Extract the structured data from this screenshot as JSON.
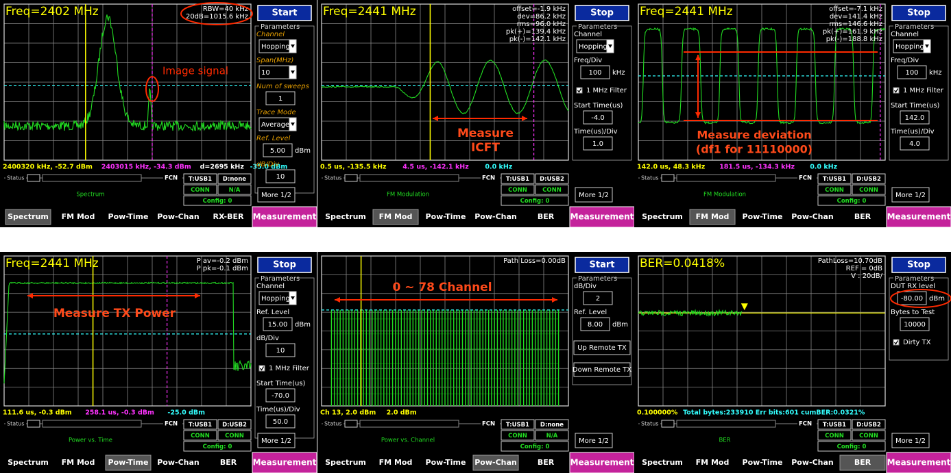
{
  "panels": [
    {
      "header": "Freq=2402 MHz",
      "info": [
        "RBW=40 kHz",
        "20dB=1015.6 kHz"
      ],
      "button": "Start",
      "parameters_title": "Parameters",
      "params": [
        {
          "kind": "select",
          "label": "Channel",
          "value": "Hopping"
        },
        {
          "kind": "select",
          "label": "Span(MHz)",
          "value": "10"
        },
        {
          "kind": "input",
          "label": "Num of sweeps",
          "value": "1"
        },
        {
          "kind": "select",
          "label": "Trace Mode",
          "value": "Average"
        },
        {
          "kind": "input",
          "label": "Ref. Level",
          "value": "5.00",
          "unit": "dBm"
        },
        {
          "kind": "input",
          "label": "dB/Div",
          "value": "10"
        }
      ],
      "markers": [
        "2400320 kHz, -52.7 dBm",
        "2403015 kHz, -34.3 dBm",
        "d=2695 kHz",
        "-35.0 dBm"
      ],
      "status": {
        "label": "Status",
        "fcn": "FCN",
        "mode": "Spectrum",
        "t": "T:USB1",
        "d": "D:none",
        "conn1": "CONN",
        "conn2": "N/A",
        "config": "Config: 0"
      },
      "more": "More 1/2",
      "tabs": [
        "Spectrum",
        "FM Mod",
        "Pow-Time",
        "Pow-Chan",
        "RX-BER"
      ],
      "active_tab": 0,
      "measurement": "Measurement",
      "trace": "spectrum",
      "annotations": [
        "Image signal"
      ]
    },
    {
      "header": "Freq=2441 MHz",
      "info": [
        "offset=-1.9 kHz",
        "dev=86.2 kHz",
        "rms=96.0 kHz",
        "pk(+)=139.4 kHz",
        "pk(-)=142.1 kHz"
      ],
      "button": "Stop",
      "parameters_title": "Parameters",
      "params": [
        {
          "kind": "select",
          "label": "Channel",
          "value": "Hopping"
        },
        {
          "kind": "input",
          "label": "Freq/Div",
          "value": "100",
          "unit": "kHz"
        },
        {
          "kind": "check",
          "text": "1 MHz Filter"
        },
        {
          "kind": "input",
          "label": "Start Time(us)",
          "value": "-4.0"
        },
        {
          "kind": "input",
          "label": "Time(us)/Div",
          "value": "1.0"
        }
      ],
      "markers": [
        "0.5 us, -135.5 kHz",
        "4.5 us, -142.1 kHz",
        "0.0 kHz"
      ],
      "status": {
        "label": "Status",
        "fcn": "FCN",
        "mode": "FM Modulation",
        "t": "T:USB1",
        "d": "D:USB2",
        "conn1": "CONN",
        "conn2": "CONN",
        "config": "Config: 0"
      },
      "more": "More 1/2",
      "tabs": [
        "Spectrum",
        "FM Mod",
        "Pow-Time",
        "Pow-Chan",
        "BER"
      ],
      "active_tab": 1,
      "measurement": "Measurement",
      "trace": "sine",
      "annotations": [
        "Measure",
        "ICFT"
      ]
    },
    {
      "header": "Freq=2441 MHz",
      "info": [
        "offset=-7.1 kHz",
        "dev=141.4 kHz",
        "rms=146.6 kHz",
        "pk(+)=161.9 kHz",
        "pk(-)=188.8 kHz"
      ],
      "button": "Stop",
      "parameters_title": "Parameters",
      "params": [
        {
          "kind": "select",
          "label": "Channel",
          "value": "Hopping"
        },
        {
          "kind": "input",
          "label": "Freq/Div",
          "value": "100",
          "unit": "kHz"
        },
        {
          "kind": "check",
          "text": "1 MHz Filter"
        },
        {
          "kind": "input",
          "label": "Start Time(us)",
          "value": "142.0"
        },
        {
          "kind": "input",
          "label": "Time(us)/Div",
          "value": "4.0"
        }
      ],
      "markers": [
        "142.0 us, 48.3 kHz",
        "181.5 us, -134.3 kHz",
        "0.0 kHz"
      ],
      "status": {
        "label": "Status",
        "fcn": "FCN",
        "mode": "FM Modulation",
        "t": "T:USB1",
        "d": "D:USB2",
        "conn1": "CONN",
        "conn2": "CONN",
        "config": "Config: 0"
      },
      "more": "More 1/2",
      "tabs": [
        "Spectrum",
        "FM Mod",
        "Pow-Time",
        "Pow-Chan",
        "BER"
      ],
      "active_tab": 1,
      "measurement": "Measurement",
      "trace": "square",
      "annotations": [
        "Measure deviation",
        "(df1 for 11110000)"
      ]
    },
    {
      "header": "Freq=2441 MHz",
      "info": [
        "P av=-0.2 dBm",
        "P pk=-0.1 dBm"
      ],
      "button": "Stop",
      "parameters_title": "Parameters",
      "params": [
        {
          "kind": "select",
          "label": "Channel",
          "value": "Hopping"
        },
        {
          "kind": "input",
          "label": "Ref. Level",
          "value": "15.00",
          "unit": "dBm"
        },
        {
          "kind": "input",
          "label": "dB/Div",
          "value": "10"
        },
        {
          "kind": "check",
          "text": "1 MHz Filter"
        },
        {
          "kind": "input",
          "label": "Start Time(us)",
          "value": "-70.0"
        },
        {
          "kind": "input",
          "label": "Time(us)/Div",
          "value": "50.0"
        }
      ],
      "markers": [
        "111.6 us, -0.3 dBm",
        "258.1 us, -0.3 dBm",
        "-25.0 dBm"
      ],
      "status": {
        "label": "Status",
        "fcn": "FCN",
        "mode": "Power vs. Time",
        "t": "T:USB1",
        "d": "D:USB2",
        "conn1": "CONN",
        "conn2": "CONN",
        "config": "Config: 0"
      },
      "more": "More 1/2",
      "tabs": [
        "Spectrum",
        "FM Mod",
        "Pow-Time",
        "Pow-Chan",
        "BER"
      ],
      "active_tab": 2,
      "measurement": "Measurement",
      "trace": "powtime",
      "annotations": [
        "Measure TX Power"
      ]
    },
    {
      "info": [
        "Path Loss=0.00dB"
      ],
      "button": "Start",
      "parameters_title": "Parameters",
      "params": [
        {
          "kind": "input",
          "label": "dB/Div",
          "value": "2"
        },
        {
          "kind": "input",
          "label": "Ref. Level",
          "value": "8.00",
          "unit": "dBm"
        },
        {
          "kind": "button",
          "text": "Up Remote TX"
        },
        {
          "kind": "button",
          "text": "Down Remote TX"
        }
      ],
      "markers": [
        "Ch 13, 2.0 dBm",
        "2.0 dBm"
      ],
      "status": {
        "label": "Status",
        "fcn": "FCN",
        "mode": "Power vs. Channel",
        "t": "T:USB1",
        "d": "D:none",
        "conn1": "CONN",
        "conn2": "N/A",
        "config": "Config: 0"
      },
      "more": "More 1/2",
      "tabs": [
        "Spectrum",
        "FM Mod",
        "Pow-Time",
        "Pow-Chan",
        "BER"
      ],
      "active_tab": 3,
      "measurement": "Measurement",
      "trace": "channels",
      "annotations": [
        "0 ~ 78 Channel"
      ]
    },
    {
      "header": "BER=0.0418%",
      "info": [
        "PathLoss=10.70dB",
        "REF = 0dB",
        "V : 20dB/"
      ],
      "button": "Stop",
      "parameters_title": "Parameters",
      "params": [
        {
          "kind": "input",
          "label": "DUT RX level",
          "value": "-80.00",
          "unit": "dBm"
        },
        {
          "kind": "input",
          "label": "Bytes to Test",
          "value": "10000"
        },
        {
          "kind": "check",
          "text": "Dirty TX"
        }
      ],
      "markers": [
        "0.100000%",
        "Total bytes:233910  Err bits:601  cumBER:0.0321%"
      ],
      "status": {
        "label": "Status",
        "fcn": "FCN",
        "mode": "BER",
        "t": "T:USB1",
        "d": "D:USB2",
        "conn1": "CONN",
        "conn2": "CONN",
        "config": "Config: 0"
      },
      "more": "More 1/2",
      "tabs": [
        "Spectrum",
        "FM Mod",
        "Pow-Time",
        "Pow-Chan",
        "BER"
      ],
      "active_tab": 4,
      "measurement": "Measurement",
      "trace": "ber",
      "annotations": []
    }
  ]
}
